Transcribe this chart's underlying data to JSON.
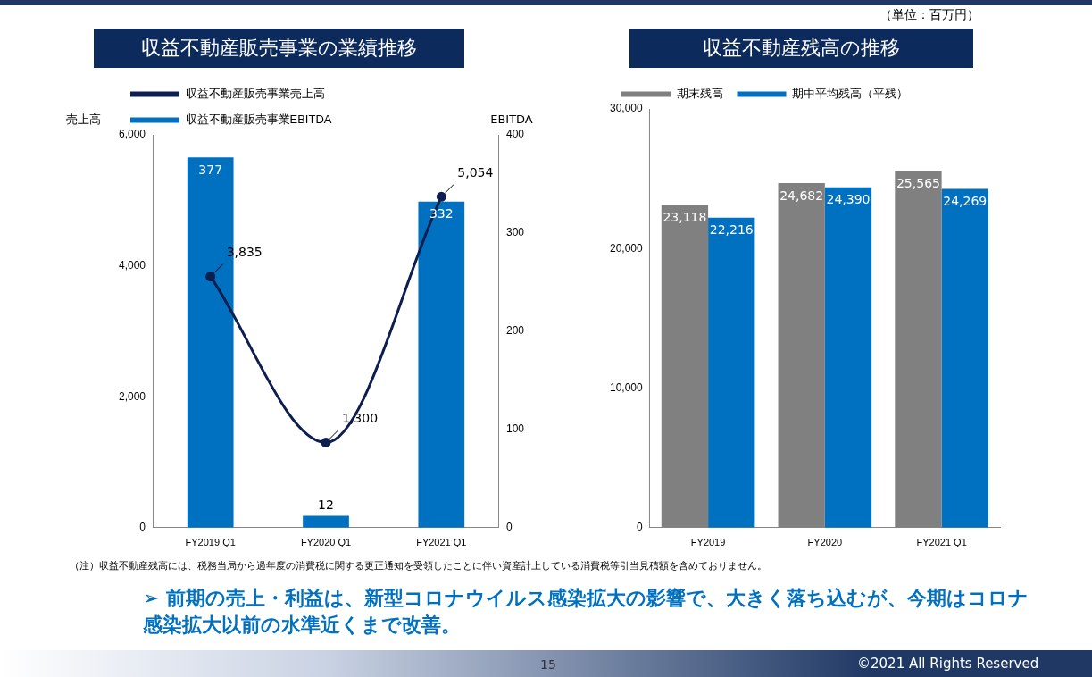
{
  "chart_data": [
    {
      "type": "bar",
      "title": "収益不動産販売事業の業績推移",
      "categories": [
        "FY2019 Q1",
        "FY2020 Q1",
        "FY2021 Q1"
      ],
      "ylabel": "売上高",
      "y2label": "EBITDA",
      "ylim": [
        0,
        6000
      ],
      "yticks": [
        {
          "value": 0,
          "label": "0"
        },
        {
          "value": 2000,
          "label": "2,000"
        },
        {
          "value": 4000,
          "label": "4,000"
        },
        {
          "value": 6000,
          "label": "6,000"
        }
      ],
      "y2lim": [
        0,
        400
      ],
      "y2ticks": [
        0,
        100,
        200,
        300,
        400
      ],
      "legend": "top left",
      "grid": false,
      "marker": "circle",
      "series": [
        {
          "name": "収益不動産販売事業売上高",
          "type": "line",
          "color": "#0d1f4f",
          "values": [
            3835,
            1300,
            5054
          ],
          "value_labels": [
            "3,835",
            "1,300",
            "5,054"
          ]
        },
        {
          "name": "収益不動産販売事業EBITDA",
          "type": "bar",
          "axis": "y2",
          "color": "#0070c0",
          "values": [
            377,
            12,
            332
          ],
          "value_labels": [
            "377",
            "12",
            "332"
          ]
        }
      ]
    },
    {
      "type": "bar",
      "title": "収益不動産残高の推移",
      "categories": [
        "FY2019",
        "FY2020",
        "FY2021 Q1"
      ],
      "ylim": [
        0,
        30000
      ],
      "yticks": [
        {
          "value": 0,
          "label": "0"
        },
        {
          "value": 10000,
          "label": "10,000"
        },
        {
          "value": 20000,
          "label": "20,000"
        },
        {
          "value": 30000,
          "label": "30,000"
        }
      ],
      "legend": "top left",
      "grid": false,
      "series": [
        {
          "name": "期末残高",
          "color": "#808080",
          "values": [
            23118,
            24682,
            25565
          ],
          "value_labels": [
            "23,118",
            "24,682",
            "25,565"
          ]
        },
        {
          "name": "期中平均残高（平残）",
          "color": "#0070c0",
          "values": [
            22216,
            24390,
            24269
          ],
          "value_labels": [
            "22,216",
            "24,390",
            "24,269"
          ]
        }
      ],
      "annotations": [
        "（単位：百万円）",
        "（注）収益不動産残高には、税務当局から過年度の消費税に関する更正通知を受領したことに伴い資産計上している消費税等引当見積額を含めておりません。",
        "➢ 前期の売上・利益は、新型コロナウイルス感染拡大の影響で、大きく落ち込むが、今期はコロナ感染拡大以前の水準近くまで改善。",
        "15",
        "©2021 All Rights Reserved"
      ]
    }
  ]
}
